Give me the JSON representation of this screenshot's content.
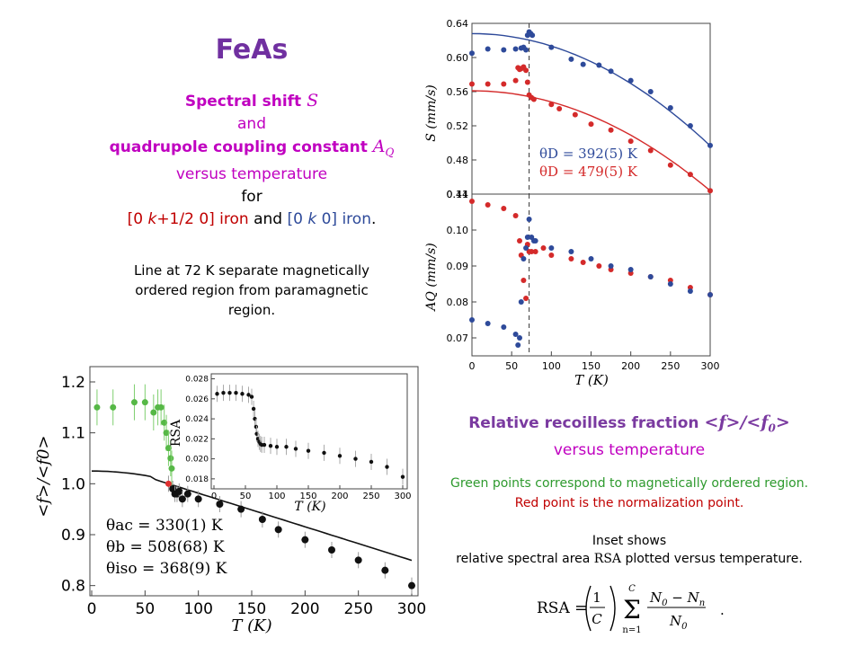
{
  "heading": {
    "title": "FeAs",
    "line1_prefix": "Spectral shift ",
    "line1_symbol": "S",
    "line2": "and",
    "line3_prefix": "quadrupole coupling constant ",
    "line3_symbol": "A",
    "line3_sub": "Q",
    "line4": "versus temperature",
    "line5": "for",
    "line6_a": "[0 ",
    "line6_k1": "k",
    "line6_b": "+1/2 0] iron",
    "line6_and": " and ",
    "line6_c": "[0 ",
    "line6_k2": "k",
    "line6_d": " 0] iron",
    "line6_dot": ".",
    "note": "Line at 72 K separate magnetically ordered region from paramagnetic region."
  },
  "recoil": {
    "title_prefix": "Relative recoilless fraction ",
    "title_f": "<f>/<f",
    "title_sub": "0",
    "title_close": ">",
    "line2": "versus temperature",
    "green_note": "Green points correspond to magnetically ordered region.",
    "red_note": "Red point is the normalization point.",
    "inset1": "Inset shows",
    "inset2_a": "relative spectral area ",
    "inset2_b": "RSA",
    "inset2_c": " plotted versus temperature.",
    "formula_lhs": "RSA =",
    "formula_one": "1",
    "formula_c": "C",
    "formula_sum_top": "C",
    "formula_sum_bottom": "n=1",
    "formula_num": "N",
    "formula_num_sub": "0",
    "formula_minus": " − N",
    "formula_num_sub2": "n",
    "formula_den": "N",
    "formula_den_sub": "0",
    "formula_dot": "."
  },
  "chart_data": [
    {
      "type": "scatter",
      "xlabel": "",
      "ylabel": "S (mm/s)",
      "xlim": [
        0,
        300
      ],
      "ylim": [
        0.44,
        0.64
      ],
      "yticks": [
        "0.64",
        "0.60",
        "0.56",
        "0.52",
        "0.48",
        "0.44"
      ],
      "vline_x": 72,
      "legend": [
        "θD = 392(5) K",
        "θD = 479(5) K"
      ],
      "series": [
        {
          "color": "#2e4a9a",
          "x": [
            0,
            20,
            40,
            55,
            62,
            65,
            68,
            70,
            72,
            74,
            76,
            100,
            125,
            140,
            160,
            175,
            200,
            225,
            250,
            275,
            300
          ],
          "y": [
            0.605,
            0.61,
            0.609,
            0.61,
            0.611,
            0.612,
            0.609,
            0.626,
            0.63,
            0.628,
            0.626,
            0.612,
            0.598,
            0.592,
            0.591,
            0.584,
            0.573,
            0.56,
            0.541,
            0.52,
            0.497
          ]
        },
        {
          "color": "#d42a2a",
          "x": [
            0,
            20,
            40,
            55,
            58,
            60,
            62,
            65,
            68,
            70,
            72,
            75,
            78,
            100,
            110,
            130,
            150,
            175,
            200,
            225,
            250,
            275,
            300
          ],
          "y": [
            0.569,
            0.569,
            0.569,
            0.573,
            0.588,
            0.586,
            0.587,
            0.589,
            0.585,
            0.571,
            0.556,
            0.553,
            0.551,
            0.545,
            0.54,
            0.533,
            0.522,
            0.515,
            0.502,
            0.491,
            0.474,
            0.463,
            0.444
          ]
        }
      ]
    },
    {
      "type": "scatter",
      "xlabel": "T (K)",
      "ylabel": "AQ (mm/s)",
      "xlim": [
        0,
        300
      ],
      "ylim": [
        0.065,
        0.11
      ],
      "xticks": [
        "0",
        "50",
        "100",
        "150",
        "200",
        "250",
        "300"
      ],
      "yticks": [
        "0.11",
        "0.10",
        "0.09",
        "0.08",
        "0.07"
      ],
      "vline_x": 72,
      "series": [
        {
          "color": "#d42a2a",
          "x": [
            0,
            20,
            40,
            55,
            60,
            62,
            65,
            68,
            70,
            72,
            75,
            80,
            90,
            100,
            125,
            140,
            160,
            175,
            200,
            225,
            250,
            275,
            300
          ],
          "y": [
            0.108,
            0.107,
            0.106,
            0.104,
            0.097,
            0.093,
            0.086,
            0.081,
            0.096,
            0.094,
            0.094,
            0.094,
            0.095,
            0.093,
            0.092,
            0.091,
            0.09,
            0.089,
            0.088,
            0.087,
            0.086,
            0.084,
            0.082
          ]
        },
        {
          "color": "#2e4a9a",
          "x": [
            0,
            20,
            40,
            55,
            58,
            60,
            62,
            65,
            68,
            70,
            72,
            75,
            78,
            80,
            100,
            125,
            150,
            175,
            200,
            225,
            250,
            275,
            300
          ],
          "y": [
            0.075,
            0.074,
            0.073,
            0.071,
            0.068,
            0.07,
            0.08,
            0.092,
            0.095,
            0.098,
            0.103,
            0.098,
            0.097,
            0.097,
            0.095,
            0.094,
            0.092,
            0.09,
            0.089,
            0.087,
            0.085,
            0.083,
            0.082
          ]
        }
      ]
    },
    {
      "type": "scatter",
      "xlabel": "T (K)",
      "ylabel": "<f>/<f0>",
      "xlim": [
        0,
        300
      ],
      "ylim": [
        0.78,
        1.23
      ],
      "xticks": [
        "0",
        "50",
        "100",
        "150",
        "200",
        "250",
        "300"
      ],
      "yticks": [
        "1.2",
        "1.1",
        "1.0",
        "0.9",
        "0.8"
      ],
      "legend": [
        "θac = 330(1) K",
        "θb = 508(68) K",
        "θiso = 368(9) K"
      ],
      "series": [
        {
          "color": "#56b846",
          "x": [
            5,
            20,
            40,
            50,
            58,
            62,
            65,
            68,
            70,
            72,
            74,
            75
          ],
          "y": [
            1.15,
            1.15,
            1.16,
            1.16,
            1.14,
            1.15,
            1.15,
            1.12,
            1.1,
            1.07,
            1.05,
            1.03
          ]
        },
        {
          "color": "#e03030",
          "x": [
            72
          ],
          "y": [
            1.0
          ]
        },
        {
          "color": "#111111",
          "x": [
            76,
            78,
            80,
            82,
            85,
            90,
            100,
            120,
            140,
            160,
            175,
            200,
            225,
            250,
            275,
            300
          ],
          "y": [
            0.99,
            0.98,
            0.98,
            0.985,
            0.97,
            0.98,
            0.97,
            0.96,
            0.95,
            0.93,
            0.91,
            0.89,
            0.87,
            0.85,
            0.83,
            0.8
          ]
        }
      ]
    },
    {
      "type": "scatter",
      "xlabel": "T (K)",
      "ylabel": "RSA",
      "xlim": [
        0,
        300
      ],
      "ylim": [
        0.017,
        0.0285
      ],
      "xticks": [
        "0",
        "50",
        "100",
        "150",
        "200",
        "250",
        "300"
      ],
      "yticks": [
        "0.028",
        "0.026",
        "0.024",
        "0.022",
        "0.020",
        "0.018"
      ],
      "series": [
        {
          "color": "#111111",
          "x": [
            5,
            15,
            25,
            35,
            45,
            55,
            60,
            63,
            65,
            67,
            68,
            70,
            72,
            74,
            76,
            80,
            90,
            100,
            115,
            130,
            150,
            175,
            200,
            225,
            250,
            275,
            300
          ],
          "y": [
            0.0265,
            0.0266,
            0.0266,
            0.0266,
            0.0265,
            0.0264,
            0.0262,
            0.025,
            0.024,
            0.0232,
            0.0225,
            0.022,
            0.0217,
            0.0215,
            0.0214,
            0.0214,
            0.0213,
            0.0212,
            0.0212,
            0.021,
            0.0208,
            0.0206,
            0.0203,
            0.02,
            0.0197,
            0.0192,
            0.0182
          ]
        }
      ]
    }
  ]
}
